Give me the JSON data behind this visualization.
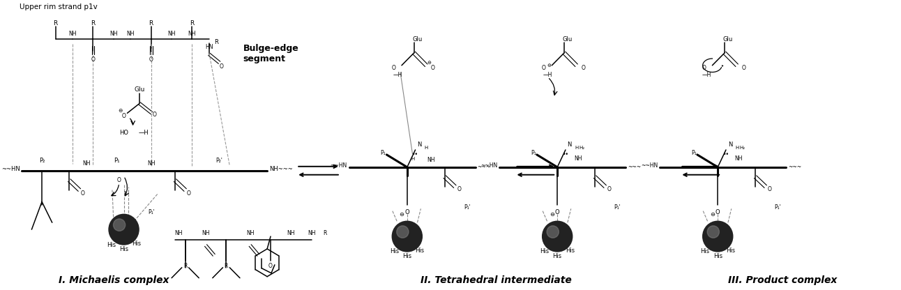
{
  "background_color": "#ffffff",
  "label_michaelis": "I. Michaelis complex",
  "label_tetrahedral": "II. Tetrahedral intermediate",
  "label_product": "III. Product complex",
  "label_top_left": "Upper rim strand p1v",
  "label_bulge_edge": "Bulge-edge\nsegment",
  "fig_width": 12.92,
  "fig_height": 4.16,
  "dpi": 100,
  "gray": "#888888",
  "darkgray": "#444444",
  "black": "#000000",
  "zinc_color": "#555555"
}
